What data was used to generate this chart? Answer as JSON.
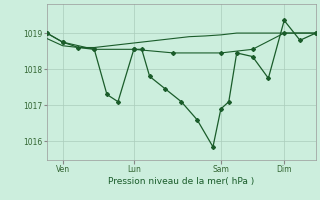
{
  "background_color": "#cceedd",
  "grid_color": "#aaccbb",
  "line_color": "#1a5c2a",
  "marker_color": "#1a5c2a",
  "xlabel": "Pression niveau de la mer( hPa )",
  "xlabel_color": "#1a5c2a",
  "tick_label_color": "#336633",
  "ylim": [
    1015.5,
    1019.8
  ],
  "yticks": [
    1016,
    1017,
    1018,
    1019
  ],
  "xlim": [
    0,
    17
  ],
  "x_tick_labels": [
    "Ven",
    "Lun",
    "Sam",
    "Dim"
  ],
  "x_tick_positions": [
    1,
    5.5,
    11,
    15
  ],
  "series_jagged": {
    "x": [
      0,
      1,
      2,
      3,
      3.8,
      4.5,
      5.5,
      6,
      6.5,
      7.5,
      8.5,
      9.5,
      10.5,
      11,
      11.5,
      12,
      13,
      14,
      15,
      16,
      17
    ],
    "y": [
      1019.0,
      1018.75,
      1018.6,
      1018.55,
      1017.3,
      1017.1,
      1018.55,
      1018.55,
      1017.8,
      1017.45,
      1017.1,
      1016.6,
      1015.85,
      1016.9,
      1017.1,
      1018.45,
      1018.35,
      1017.75,
      1019.35,
      1018.8,
      1019.0
    ]
  },
  "series_trend": {
    "x": [
      0,
      1,
      2,
      3,
      4,
      5,
      6,
      7,
      8,
      9,
      10,
      11,
      12,
      13,
      14,
      15,
      16,
      17
    ],
    "y": [
      1018.85,
      1018.65,
      1018.6,
      1018.6,
      1018.65,
      1018.7,
      1018.75,
      1018.8,
      1018.85,
      1018.9,
      1018.92,
      1018.95,
      1019.0,
      1019.0,
      1019.0,
      1019.0,
      1019.0,
      1019.0
    ]
  },
  "series_smooth": {
    "x": [
      0,
      1,
      3,
      5.5,
      8,
      11,
      13,
      15,
      17
    ],
    "y": [
      1019.0,
      1018.75,
      1018.55,
      1018.55,
      1018.45,
      1018.45,
      1018.55,
      1019.0,
      1019.0
    ]
  }
}
